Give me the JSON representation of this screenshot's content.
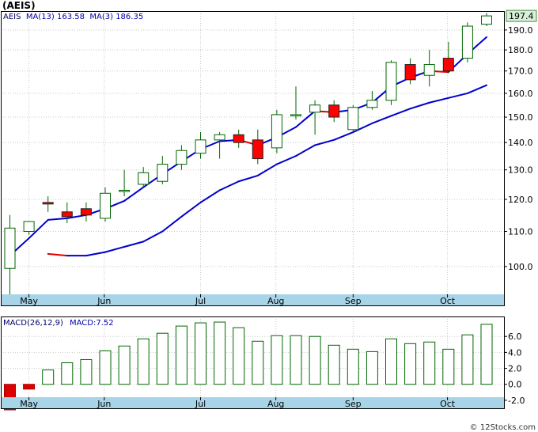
{
  "title": "(AEIS)",
  "price_panel": {
    "legend": {
      "ticker": "AEIS",
      "ma13_label": "MA(13)",
      "ma13_value": "163.58",
      "ma3_label": "MA(3)",
      "ma3_value": "186.35"
    },
    "last_price_label": "197.4"
  },
  "macd_panel": {
    "legend": {
      "params_label": "MACD(26,12,9)",
      "value_label": "MACD:7.52"
    }
  },
  "watermark": "© 12Stocks.com",
  "colors": {
    "up_candle": "#ffffff",
    "down_candle": "#ff0000",
    "ma_line": "#0000cc",
    "ma_falling": "#dd0000",
    "macd_bar": "#006600",
    "macd_negative": "#dd0000",
    "axis_band": "#a8d4e8",
    "last_price_box": "#d8f0d8"
  },
  "chart_data": [
    {
      "type": "candlestick",
      "title": "(AEIS)",
      "x_ticks": [
        "May",
        "Jun",
        "Jul",
        "Aug",
        "Sep",
        "Oct"
      ],
      "y_ticks": [
        100,
        110,
        120,
        130,
        140,
        150,
        160,
        170,
        180,
        190
      ],
      "ylim": [
        90,
        200
      ],
      "y_scale": "log",
      "grid": true,
      "candles": [
        {
          "o": 99.5,
          "h": 115,
          "l": 92,
          "c": 111
        },
        {
          "o": 110,
          "h": 113,
          "l": 109,
          "c": 113
        },
        {
          "o": 119,
          "h": 121,
          "l": 116,
          "c": 118.5
        },
        {
          "o": 116,
          "h": 119,
          "l": 112.5,
          "c": 114.5
        },
        {
          "o": 117,
          "h": 119,
          "l": 113,
          "c": 115
        },
        {
          "o": 114,
          "h": 124,
          "l": 113,
          "c": 122
        },
        {
          "o": 123,
          "h": 130,
          "l": 121,
          "c": 123
        },
        {
          "o": 125,
          "h": 131,
          "l": 124,
          "c": 129
        },
        {
          "o": 126,
          "h": 135,
          "l": 125,
          "c": 132
        },
        {
          "o": 132,
          "h": 139,
          "l": 130,
          "c": 137
        },
        {
          "o": 136,
          "h": 144,
          "l": 134,
          "c": 141
        },
        {
          "o": 141,
          "h": 144,
          "l": 134,
          "c": 143
        },
        {
          "o": 143,
          "h": 145,
          "l": 138,
          "c": 140
        },
        {
          "o": 141,
          "h": 145,
          "l": 132,
          "c": 134
        },
        {
          "o": 138,
          "h": 153,
          "l": 136,
          "c": 151
        },
        {
          "o": 151,
          "h": 163,
          "l": 149,
          "c": 151
        },
        {
          "o": 152,
          "h": 157,
          "l": 143,
          "c": 155
        },
        {
          "o": 155,
          "h": 157,
          "l": 148,
          "c": 150
        },
        {
          "o": 145,
          "h": 155,
          "l": 144,
          "c": 154
        },
        {
          "o": 154,
          "h": 161,
          "l": 153,
          "c": 157
        },
        {
          "o": 157,
          "h": 175,
          "l": 155,
          "c": 174
        },
        {
          "o": 173,
          "h": 176,
          "l": 164,
          "c": 166
        },
        {
          "o": 168,
          "h": 180,
          "l": 163,
          "c": 173
        },
        {
          "o": 176,
          "h": 184,
          "l": 169,
          "c": 170
        },
        {
          "o": 176,
          "h": 194,
          "l": 174,
          "c": 192
        },
        {
          "o": 193,
          "h": 199,
          "l": 192,
          "c": 197.4
        }
      ],
      "series": [
        {
          "name": "MA(3)",
          "values": [
            103,
            108,
            113.5,
            114,
            115,
            117,
            119.5,
            124,
            128.5,
            133,
            137.5,
            140.5,
            141,
            139,
            142,
            146,
            152.5,
            152,
            153,
            156,
            163,
            167,
            170,
            169.5,
            178,
            186.35
          ]
        },
        {
          "name": "MA(13)",
          "values": [
            null,
            null,
            103.5,
            103,
            103,
            104,
            105.5,
            107,
            110,
            114.5,
            119,
            123,
            126,
            128,
            132,
            135,
            139,
            141,
            144,
            147.5,
            150.5,
            153.5,
            156,
            158,
            160,
            163.58
          ]
        }
      ]
    },
    {
      "type": "bar",
      "title": "MACD(26,12,9)",
      "x_ticks": [
        "May",
        "Jun",
        "Jul",
        "Aug",
        "Sep",
        "Oct"
      ],
      "y_ticks": [
        -2.0,
        0.0,
        2.0,
        4.0,
        6.0
      ],
      "ylim": [
        -3,
        8.5
      ],
      "grid": true,
      "values": [
        -3.2,
        -0.6,
        1.8,
        2.7,
        3.1,
        4.2,
        4.8,
        5.7,
        6.4,
        7.3,
        7.7,
        7.8,
        7.1,
        5.4,
        6.1,
        6.1,
        6.0,
        4.9,
        4.4,
        4.1,
        5.7,
        5.1,
        5.3,
        4.4,
        6.2,
        7.52
      ]
    }
  ]
}
